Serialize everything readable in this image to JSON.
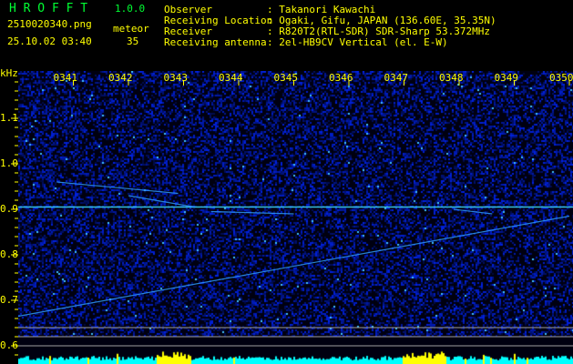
{
  "header": {
    "app_name": "H R O F F T",
    "version": "1.0.0",
    "filename": "2510020340.png",
    "datetime": "25.10.02 03:40",
    "meteor_label": "meteor",
    "meteor_count": "35",
    "info": [
      {
        "label": "Observer",
        "value": ": Takanori Kawachi"
      },
      {
        "label": "Receiving Location",
        "value": ": Ogaki, Gifu, JAPAN (136.60E, 35.35N)"
      },
      {
        "label": "Receiver",
        "value": ": R820T2(RTL-SDR) SDR-Sharp 53.372MHz"
      },
      {
        "label": "Receiving antenna",
        "value": ": 2el-HB9CV Vertical (el. E-W)"
      }
    ]
  },
  "colors": {
    "text": "#ffff00",
    "title": "#00ff33",
    "background": "#000000",
    "noise": "#1020c0",
    "signal": "#00ffff"
  },
  "chart_data": {
    "type": "heatmap",
    "ylabel": "kHz",
    "x_ticks": [
      "0341",
      "0342",
      "0343",
      "0344",
      "0345",
      "0346",
      "0347",
      "0348",
      "0349",
      "0350"
    ],
    "x_range": [
      "0340",
      "0350"
    ],
    "y_ticks": [
      "1.1",
      "1.0",
      "0.9",
      "0.8",
      "0.7",
      "0.6"
    ],
    "y_range": [
      0.57,
      1.2
    ],
    "carrier_khz": 0.905,
    "traces": [
      {
        "t0": 0.0,
        "f0": 0.665,
        "t1": 10.0,
        "f1": 0.885
      },
      {
        "t0": 0.7,
        "f0": 0.96,
        "t1": 2.9,
        "f1": 0.935
      },
      {
        "t0": 2.0,
        "f0": 0.93,
        "t1": 3.2,
        "f1": 0.905
      },
      {
        "t0": 3.5,
        "f0": 0.895,
        "t1": 5.0,
        "f1": 0.89
      },
      {
        "t0": 7.9,
        "f0": 0.9,
        "t1": 8.6,
        "f1": 0.89
      }
    ],
    "guide_lines_khz": [
      0.62,
      0.6,
      0.58
    ]
  }
}
